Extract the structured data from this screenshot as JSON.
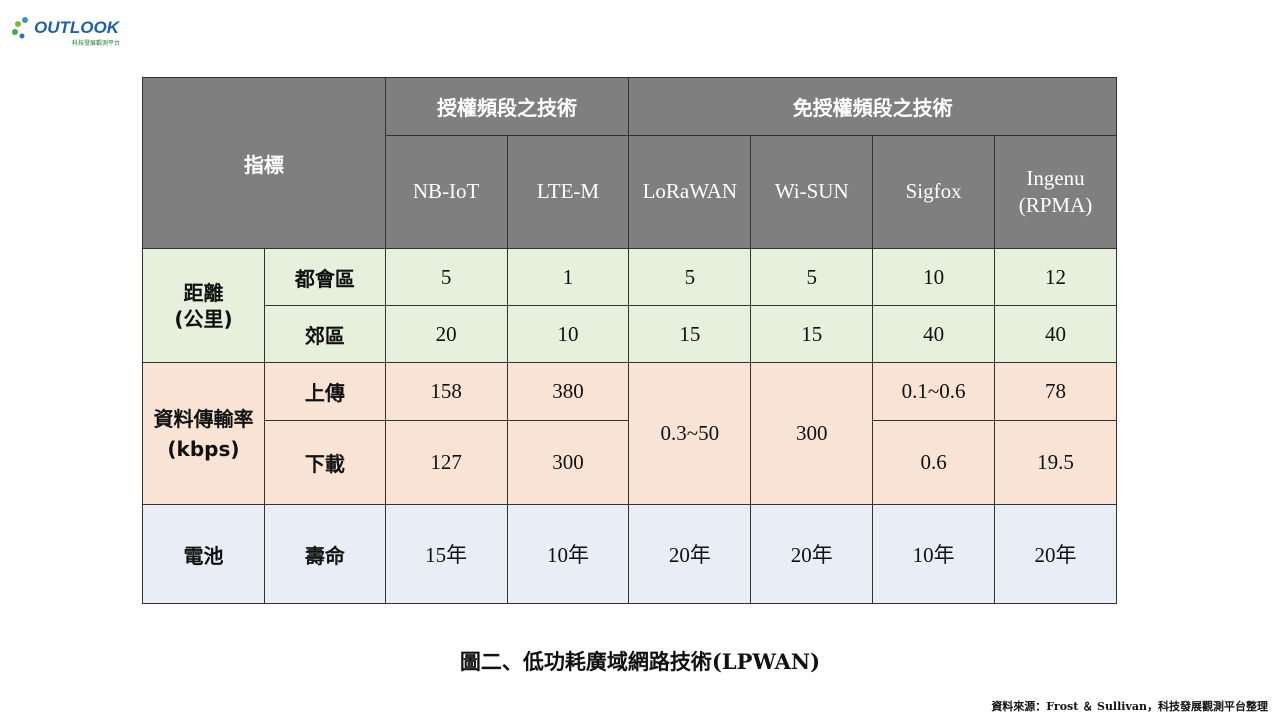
{
  "logo": {
    "text": "OUTLOOK",
    "subtitle": "科技發展觀測平台"
  },
  "table": {
    "indicator_header": "指標",
    "group_licensed": "授權頻段之技術",
    "group_unlicensed": "免授權頻段之技術",
    "techs": [
      "NB-IoT",
      "LTE-M",
      "LoRaWAN",
      "Wi-SUN",
      "Sigfox",
      "Ingenu (RPMA)"
    ],
    "distance": {
      "label": "距離\n(公里)",
      "urban": {
        "label": "都會區",
        "values": [
          "5",
          "1",
          "5",
          "5",
          "10",
          "12"
        ]
      },
      "suburban": {
        "label": "郊區",
        "values": [
          "20",
          "10",
          "15",
          "15",
          "40",
          "40"
        ]
      }
    },
    "rate": {
      "label": "資料傳輸率(kbps)",
      "up": {
        "label": "上傳",
        "values": [
          "158",
          "380",
          "0.1~0.6",
          "78"
        ]
      },
      "down": {
        "label": "下載",
        "values": [
          "127",
          "300",
          "0.6",
          "19.5"
        ]
      },
      "merged": [
        "0.3~50",
        "300"
      ]
    },
    "battery": {
      "label": "電池",
      "life_label": "壽命",
      "values": [
        "15年",
        "10年",
        "20年",
        "20年",
        "10年",
        "20年"
      ]
    }
  },
  "caption": "圖二、低功耗廣域網路技術(LPWAN)",
  "source": "資料來源：Frost ＆ Sullivan，科技發展觀測平台整理"
}
